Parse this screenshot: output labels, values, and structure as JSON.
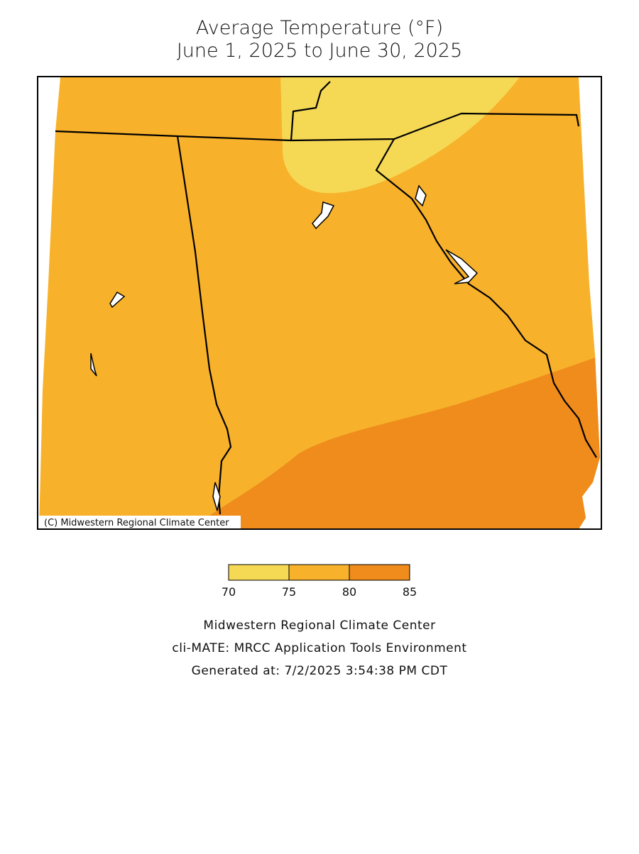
{
  "header": {
    "title": "Average Temperature (°F)",
    "subtitle": "June 1, 2025 to June 30, 2025"
  },
  "map": {
    "credit": "(C) Midwestern Regional Climate Center"
  },
  "legend": {
    "ticks": [
      70,
      75,
      80,
      85
    ],
    "colors": [
      "#f5d955",
      "#f7b12b",
      "#ef8c1c"
    ]
  },
  "footer": {
    "lines": [
      "Midwestern Regional Climate Center",
      "cli-MATE: MRCC Application Tools Environment",
      "Generated at: 7/2/2025 3:54:38 PM CDT"
    ]
  }
}
